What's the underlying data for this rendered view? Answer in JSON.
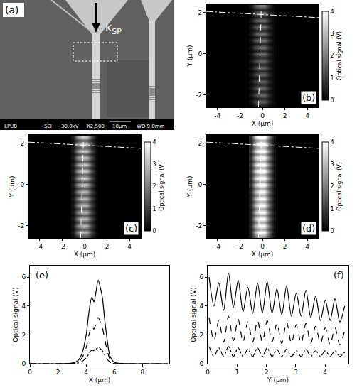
{
  "chart_data": [
    {
      "type": "heatmap",
      "panel": "(b)",
      "xlabel": "X (μm)",
      "ylabel": "Y (μm)",
      "xlim": [
        -5,
        5
      ],
      "ylim": [
        -2.6,
        2.4
      ],
      "xticks": [
        -4,
        -2,
        0,
        2,
        4
      ],
      "yticks": [
        -2,
        0,
        2
      ],
      "grid": false,
      "colorbar_title": "Optical signal (V)",
      "zlim": [
        0,
        4
      ],
      "zticks": [
        0,
        1,
        2,
        3,
        4
      ],
      "x": [
        -1.0,
        -0.6,
        -0.2,
        0.2,
        0.6,
        1.0
      ],
      "y": [
        -2.5,
        -2.335,
        -2.17,
        -2.005,
        -1.84,
        -1.675,
        -1.51,
        -1.345,
        -1.18,
        -1.015,
        -0.85,
        -0.685,
        -0.52,
        -0.355,
        -0.19,
        -0.025,
        0.14,
        0.305,
        0.47,
        0.635,
        0.8,
        0.965,
        1.13,
        1.295,
        1.46,
        1.625,
        1.79,
        1.955,
        2.12,
        2.285
      ],
      "z": [
        [
          0.1,
          0.4,
          0.6,
          0.6,
          0.3,
          0.1
        ],
        [
          0.3,
          1.1,
          1.7,
          1.6,
          0.7,
          0.1
        ],
        [
          0.1,
          0.4,
          0.6,
          0.6,
          0.3,
          0.1
        ],
        [
          0.3,
          1.1,
          1.7,
          1.6,
          0.7,
          0.1
        ],
        [
          0.1,
          0.4,
          0.6,
          0.6,
          0.3,
          0.1
        ],
        [
          0.3,
          1.1,
          1.7,
          1.6,
          0.7,
          0.1
        ],
        [
          0.1,
          0.4,
          0.6,
          0.6,
          0.3,
          0.1
        ],
        [
          0.3,
          1.1,
          1.7,
          1.6,
          0.7,
          0.1
        ],
        [
          0.1,
          0.4,
          0.6,
          0.6,
          0.3,
          0.1
        ],
        [
          0.3,
          1.1,
          1.7,
          1.6,
          0.7,
          0.1
        ],
        [
          0.1,
          0.4,
          0.6,
          0.6,
          0.3,
          0.1
        ],
        [
          0.3,
          1.1,
          1.7,
          1.6,
          0.7,
          0.1
        ],
        [
          0.1,
          0.4,
          0.6,
          0.6,
          0.3,
          0.1
        ],
        [
          0.3,
          1.1,
          1.7,
          1.6,
          0.7,
          0.1
        ],
        [
          0.1,
          0.4,
          0.6,
          0.6,
          0.3,
          0.1
        ],
        [
          0.3,
          1.3,
          1.9,
          1.8,
          0.8,
          0.1
        ],
        [
          0.1,
          0.4,
          0.6,
          0.6,
          0.3,
          0.1
        ],
        [
          0.3,
          1.3,
          1.9,
          1.8,
          0.8,
          0.1
        ],
        [
          0.1,
          0.4,
          0.6,
          0.6,
          0.3,
          0.1
        ],
        [
          0.3,
          1.3,
          1.9,
          1.8,
          0.8,
          0.1
        ],
        [
          0.1,
          0.4,
          0.6,
          0.6,
          0.3,
          0.1
        ],
        [
          0.3,
          1.3,
          1.9,
          1.8,
          0.8,
          0.1
        ],
        [
          0.1,
          0.4,
          0.6,
          0.6,
          0.3,
          0.1
        ],
        [
          0.3,
          1.3,
          1.9,
          1.8,
          0.8,
          0.1
        ],
        [
          0.1,
          0.4,
          0.6,
          0.6,
          0.3,
          0.1
        ],
        [
          0.3,
          1.3,
          1.9,
          1.8,
          0.8,
          0.1
        ],
        [
          0.1,
          0.4,
          0.6,
          0.6,
          0.3,
          0.1
        ],
        [
          0.3,
          1.3,
          1.9,
          1.8,
          0.8,
          0.1
        ],
        [
          0.1,
          0.4,
          0.6,
          0.6,
          0.3,
          0.1
        ],
        [
          0.3,
          1.3,
          1.9,
          1.8,
          0.8,
          0.1
        ]
      ],
      "series": [
        {
          "type": "line",
          "line_style": "dashdot",
          "color": "#ffffff",
          "x": [
            -5,
            5
          ],
          "y": [
            2.05,
            1.75
          ]
        },
        {
          "type": "line",
          "line_style": "dashed",
          "color": "#ffffff",
          "x": [
            -0.35,
            -0.1
          ],
          "y": [
            -2.6,
            2.3
          ]
        }
      ]
    },
    {
      "type": "heatmap",
      "panel": "(c)",
      "xlabel": "X (μm)",
      "ylabel": "Y (μm)",
      "xlim": [
        -5,
        5
      ],
      "ylim": [
        -2.6,
        2.4
      ],
      "xticks": [
        -4,
        -2,
        0,
        2,
        4
      ],
      "yticks": [
        -2,
        0,
        2
      ],
      "grid": false,
      "colorbar_title": "Optical signal (V)",
      "zlim": [
        0,
        4
      ],
      "zticks": [
        0,
        1,
        2,
        3,
        4
      ],
      "x": [
        -1.0,
        -0.6,
        -0.2,
        0.2,
        0.6,
        1.0
      ],
      "y": [
        -2.5,
        -2.335,
        -2.17,
        -2.005,
        -1.84,
        -1.675,
        -1.51,
        -1.345,
        -1.18,
        -1.015,
        -0.85,
        -0.685,
        -0.52,
        -0.355,
        -0.19,
        -0.025,
        0.14,
        0.305,
        0.47,
        0.635,
        0.8,
        0.965,
        1.13,
        1.295,
        1.46,
        1.625,
        1.79,
        1.955,
        2.12,
        2.285
      ],
      "z": [
        [
          0.2,
          1.0,
          1.5,
          1.4,
          0.7,
          0.1
        ],
        [
          0.4,
          2.1,
          3.0,
          2.8,
          1.3,
          0.2
        ],
        [
          0.2,
          1.0,
          1.5,
          1.4,
          0.7,
          0.1
        ],
        [
          0.4,
          2.1,
          3.0,
          2.8,
          1.3,
          0.2
        ],
        [
          0.2,
          1.0,
          1.5,
          1.4,
          0.7,
          0.1
        ],
        [
          0.4,
          2.1,
          3.0,
          2.8,
          1.3,
          0.2
        ],
        [
          0.2,
          1.0,
          1.5,
          1.4,
          0.7,
          0.1
        ],
        [
          0.4,
          2.1,
          3.0,
          2.8,
          1.3,
          0.2
        ],
        [
          0.2,
          1.0,
          1.5,
          1.4,
          0.7,
          0.1
        ],
        [
          0.4,
          2.1,
          3.0,
          2.8,
          1.3,
          0.2
        ],
        [
          0.2,
          1.0,
          1.5,
          1.4,
          0.7,
          0.1
        ],
        [
          0.4,
          2.1,
          3.0,
          2.8,
          1.3,
          0.2
        ],
        [
          0.2,
          1.0,
          1.5,
          1.4,
          0.7,
          0.1
        ],
        [
          0.4,
          2.1,
          3.0,
          2.8,
          1.3,
          0.2
        ],
        [
          0.2,
          1.0,
          1.5,
          1.4,
          0.7,
          0.1
        ],
        [
          0.5,
          2.4,
          3.3,
          3.1,
          1.5,
          0.2
        ],
        [
          0.2,
          1.0,
          1.5,
          1.4,
          0.7,
          0.1
        ],
        [
          0.5,
          2.4,
          3.3,
          3.1,
          1.5,
          0.2
        ],
        [
          0.2,
          1.0,
          1.5,
          1.4,
          0.7,
          0.1
        ],
        [
          0.5,
          2.4,
          3.3,
          3.1,
          1.5,
          0.2
        ],
        [
          0.2,
          1.0,
          1.5,
          1.4,
          0.7,
          0.1
        ],
        [
          0.5,
          2.4,
          3.3,
          3.1,
          1.5,
          0.2
        ],
        [
          0.2,
          1.0,
          1.5,
          1.4,
          0.7,
          0.1
        ],
        [
          0.5,
          2.4,
          3.3,
          3.1,
          1.5,
          0.2
        ],
        [
          0.2,
          1.0,
          1.5,
          1.4,
          0.7,
          0.1
        ],
        [
          0.5,
          2.4,
          3.3,
          3.1,
          1.5,
          0.2
        ],
        [
          0.2,
          1.0,
          1.5,
          1.4,
          0.7,
          0.1
        ],
        [
          0.5,
          2.4,
          3.3,
          3.1,
          1.5,
          0.2
        ],
        [
          0.2,
          1.0,
          1.5,
          1.4,
          0.7,
          0.1
        ],
        [
          0.5,
          2.4,
          3.3,
          3.1,
          1.5,
          0.2
        ]
      ],
      "series": [
        {
          "type": "line",
          "line_style": "dashdot",
          "color": "#ffffff",
          "x": [
            -5,
            5
          ],
          "y": [
            2.05,
            1.75
          ]
        },
        {
          "type": "line",
          "line_style": "dashed",
          "color": "#ffffff",
          "x": [
            -0.35,
            -0.1
          ],
          "y": [
            -2.6,
            2.3
          ]
        }
      ]
    },
    {
      "type": "heatmap",
      "panel": "(d)",
      "xlabel": "X (μm)",
      "ylabel": "Y (μm)",
      "xlim": [
        -5,
        5
      ],
      "ylim": [
        -2.6,
        2.4
      ],
      "xticks": [
        -4,
        -2,
        0,
        2,
        4
      ],
      "yticks": [
        -2,
        0,
        2
      ],
      "grid": false,
      "colorbar_title": "Optical signal (V)",
      "zlim": [
        0,
        4
      ],
      "zticks": [
        0,
        1,
        2,
        3,
        4
      ],
      "x": [
        -1.0,
        -0.6,
        -0.2,
        0.2,
        0.6,
        1.0
      ],
      "y": [
        -2.5,
        -2.335,
        -2.17,
        -2.005,
        -1.84,
        -1.675,
        -1.51,
        -1.345,
        -1.18,
        -1.015,
        -0.85,
        -0.685,
        -0.52,
        -0.355,
        -0.19,
        -0.025,
        0.14,
        0.305,
        0.47,
        0.635,
        0.8,
        0.965,
        1.13,
        1.295,
        1.46,
        1.625,
        1.79,
        1.955,
        2.12,
        2.285
      ],
      "z": [
        [
          0.4,
          1.9,
          2.8,
          2.6,
          1.2,
          0.2
        ],
        [
          0.6,
          3.0,
          4.2,
          4.0,
          1.9,
          0.3
        ],
        [
          0.4,
          1.9,
          2.8,
          2.6,
          1.2,
          0.2
        ],
        [
          0.6,
          3.0,
          4.2,
          4.0,
          1.9,
          0.3
        ],
        [
          0.4,
          1.9,
          2.8,
          2.6,
          1.2,
          0.2
        ],
        [
          0.6,
          3.0,
          4.2,
          4.0,
          1.9,
          0.3
        ],
        [
          0.4,
          1.9,
          2.8,
          2.6,
          1.2,
          0.2
        ],
        [
          0.6,
          3.0,
          4.2,
          4.0,
          1.9,
          0.3
        ],
        [
          0.4,
          1.9,
          2.8,
          2.6,
          1.2,
          0.2
        ],
        [
          0.6,
          3.0,
          4.2,
          4.0,
          1.9,
          0.3
        ],
        [
          0.4,
          1.9,
          2.8,
          2.6,
          1.2,
          0.2
        ],
        [
          0.6,
          3.0,
          4.2,
          4.0,
          1.9,
          0.3
        ],
        [
          0.4,
          1.9,
          2.8,
          2.6,
          1.2,
          0.2
        ],
        [
          0.6,
          3.0,
          4.2,
          4.0,
          1.9,
          0.3
        ],
        [
          0.4,
          1.9,
          2.8,
          2.6,
          1.2,
          0.2
        ],
        [
          0.8,
          3.4,
          4.5,
          4.3,
          2.2,
          0.4
        ],
        [
          0.4,
          1.9,
          2.8,
          2.6,
          1.2,
          0.2
        ],
        [
          0.8,
          3.4,
          4.5,
          4.3,
          2.2,
          0.4
        ],
        [
          0.4,
          1.9,
          2.8,
          2.6,
          1.2,
          0.2
        ],
        [
          0.8,
          3.4,
          4.5,
          4.3,
          2.2,
          0.4
        ],
        [
          0.4,
          1.9,
          2.8,
          2.6,
          1.2,
          0.2
        ],
        [
          0.8,
          3.4,
          4.5,
          4.3,
          2.2,
          0.4
        ],
        [
          0.4,
          1.9,
          2.8,
          2.6,
          1.2,
          0.2
        ],
        [
          0.8,
          3.4,
          4.5,
          4.3,
          2.2,
          0.4
        ],
        [
          0.4,
          1.9,
          2.8,
          2.6,
          1.2,
          0.2
        ],
        [
          0.8,
          3.4,
          4.5,
          4.3,
          2.2,
          0.4
        ],
        [
          0.4,
          1.9,
          2.8,
          2.6,
          1.2,
          0.2
        ],
        [
          0.8,
          3.4,
          4.5,
          4.3,
          2.2,
          0.4
        ],
        [
          0.4,
          1.9,
          2.8,
          2.6,
          1.2,
          0.2
        ],
        [
          0.8,
          3.4,
          4.5,
          4.3,
          2.2,
          0.4
        ]
      ],
      "series": [
        {
          "type": "line",
          "line_style": "dashdot",
          "color": "#ffffff",
          "x": [
            -5,
            5
          ],
          "y": [
            2.05,
            1.75
          ]
        },
        {
          "type": "line",
          "line_style": "dashed",
          "color": "#ffffff",
          "x": [
            -0.35,
            -0.1
          ],
          "y": [
            -2.6,
            2.3
          ]
        }
      ]
    },
    {
      "type": "line",
      "panel": "(e)",
      "xlabel": "X (μm)",
      "ylabel": "Optical signal (V)",
      "xlim": [
        0,
        9.9
      ],
      "ylim": [
        0,
        6.8
      ],
      "xticks": [
        0,
        2,
        4,
        6,
        8
      ],
      "yticks": [
        0,
        2,
        4,
        6
      ],
      "grid": false,
      "x": [
        0,
        1,
        2,
        3,
        3.4,
        3.7,
        4.0,
        4.2,
        4.4,
        4.55,
        4.7,
        4.85,
        5.0,
        5.15,
        5.3,
        5.5,
        5.7,
        6,
        7,
        8,
        9,
        9.8
      ],
      "series": [
        {
          "line_style": "solid",
          "color": "#000000",
          "values": [
            0,
            0,
            0,
            0.05,
            0.2,
            0.7,
            2.0,
            3.6,
            4.6,
            4.3,
            5.0,
            5.8,
            5.3,
            4.6,
            3.2,
            1.6,
            0.5,
            0.1,
            0,
            0,
            0,
            0
          ]
        },
        {
          "line_style": "dashed",
          "color": "#000000",
          "values": [
            0,
            0,
            0,
            0.03,
            0.1,
            0.4,
            1.1,
            2.0,
            2.6,
            2.4,
            2.8,
            3.2,
            2.9,
            2.5,
            1.8,
            0.9,
            0.3,
            0.05,
            0,
            0,
            0,
            0
          ]
        },
        {
          "line_style": "dashdot",
          "color": "#000000",
          "values": [
            0,
            0,
            0,
            0.01,
            0.05,
            0.15,
            0.4,
            0.7,
            0.95,
            0.9,
            1.0,
            1.15,
            1.05,
            0.9,
            0.6,
            0.3,
            0.1,
            0.02,
            0,
            0,
            0,
            0
          ]
        }
      ]
    },
    {
      "type": "line",
      "panel": "(f)",
      "xlabel": "Y (μm)",
      "ylabel": "Optical signal (V)",
      "xlim": [
        0,
        4.8
      ],
      "ylim": [
        0,
        6.8
      ],
      "xticks": [
        0,
        1,
        2,
        3,
        4
      ],
      "yticks": [
        0,
        2,
        4,
        6
      ],
      "grid": false,
      "x": [
        0.05,
        0.215,
        0.38,
        0.545,
        0.71,
        0.875,
        1.04,
        1.205,
        1.37,
        1.535,
        1.7,
        1.865,
        2.03,
        2.195,
        2.36,
        2.525,
        2.69,
        2.855,
        3.02,
        3.185,
        3.35,
        3.515,
        3.68,
        3.845,
        4.01,
        4.175,
        4.34,
        4.505,
        4.67
      ],
      "series": [
        {
          "line_style": "solid",
          "color": "#000000",
          "values": [
            6.0,
            4.0,
            5.6,
            3.7,
            6.3,
            3.9,
            5.8,
            3.6,
            5.3,
            3.5,
            5.6,
            3.5,
            5.7,
            3.5,
            5.2,
            3.4,
            5.4,
            3.3,
            4.9,
            3.3,
            5.1,
            3.2,
            4.7,
            3.0,
            4.4,
            3.0,
            4.5,
            2.9,
            4.0
          ]
        },
        {
          "line_style": "dashed",
          "color": "#000000",
          "values": [
            3.2,
            1.6,
            3.0,
            1.5,
            3.3,
            1.6,
            3.1,
            1.5,
            2.9,
            1.5,
            3.0,
            1.5,
            3.0,
            1.5,
            2.8,
            1.4,
            2.9,
            1.4,
            2.7,
            1.4,
            2.8,
            1.4,
            2.6,
            1.4,
            2.5,
            1.3,
            2.5,
            1.3,
            2.3
          ]
        },
        {
          "line_style": "dashdot",
          "color": "#000000",
          "values": [
            1.2,
            0.5,
            1.1,
            0.5,
            1.2,
            0.5,
            1.1,
            0.5,
            1.0,
            0.5,
            1.1,
            0.5,
            1.1,
            0.5,
            1.0,
            0.5,
            1.0,
            0.5,
            0.9,
            0.5,
            1.0,
            0.5,
            0.9,
            0.5,
            0.9,
            0.5,
            0.9,
            0.5,
            0.8
          ]
        }
      ]
    }
  ],
  "image": {
    "panel": "(a)",
    "arrow_label": "k",
    "arrow_label_subscript": "SP",
    "info_bar": [
      "LPUB",
      "SEI",
      "30.0kV",
      "X2,500",
      "10μm",
      "WD 9.0mm"
    ]
  }
}
